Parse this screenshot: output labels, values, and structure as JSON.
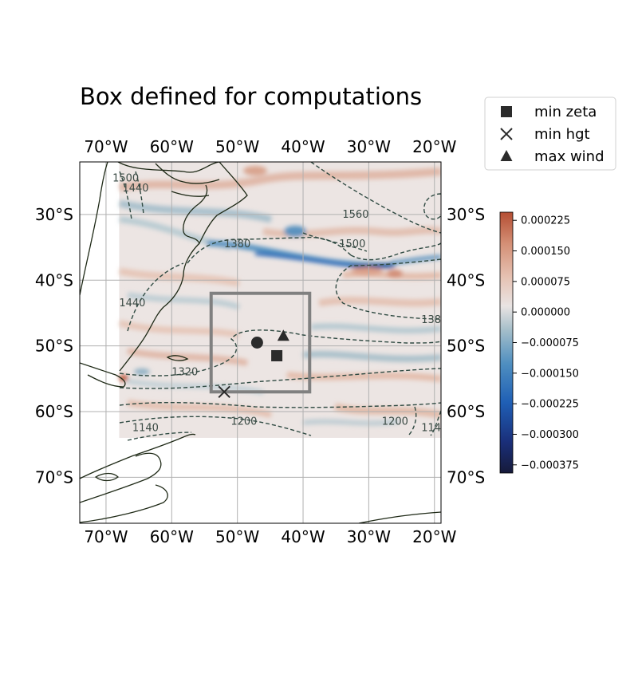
{
  "chart_data": {
    "type": "heatmap",
    "title": "Box defined for computations",
    "xlabel": "",
    "ylabel": "",
    "x_ticks": [
      "70°W",
      "60°W",
      "50°W",
      "40°W",
      "30°W",
      "20°W"
    ],
    "x_tick_values": [
      -70,
      -60,
      -50,
      -40,
      -30,
      -20
    ],
    "y_ticks": [
      "30°S",
      "40°S",
      "50°S",
      "60°S",
      "70°S"
    ],
    "y_tick_values": [
      -30,
      -40,
      -50,
      -60,
      -70
    ],
    "xlim": [
      -74,
      -19
    ],
    "ylim": [
      -77,
      -22
    ],
    "grid": true,
    "field_extent": {
      "lon": [
        -68,
        -19
      ],
      "lat": [
        -64,
        -22
      ]
    },
    "colorbar": {
      "ticks": [
        "0.000225",
        "0.000150",
        "0.000075",
        "0.000000",
        "−0.000075",
        "−0.000150",
        "−0.000225",
        "−0.000300",
        "−0.000375"
      ],
      "tick_values": [
        0.000225,
        0.00015,
        7.5e-05,
        0,
        -7.5e-05,
        -0.00015,
        -0.000225,
        -0.0003,
        -0.000375
      ],
      "range": [
        -0.000395,
        0.000245
      ],
      "colors": [
        "#161a3a",
        "#1a2f7a",
        "#1f5fb5",
        "#4f8fc0",
        "#a6bfca",
        "#e9e4e3",
        "#e6c2b3",
        "#d48f75",
        "#b54e33"
      ]
    },
    "box": {
      "lon": [
        -54,
        -39
      ],
      "lat": [
        -57,
        -42
      ]
    },
    "markers": [
      {
        "label": "min zeta",
        "symbol": "square",
        "lon": -44,
        "lat": -51.5
      },
      {
        "label": "min hgt",
        "symbol": "x",
        "lon": -52,
        "lat": -57
      },
      {
        "label": "max wind",
        "symbol": "triangle",
        "lon": -43,
        "lat": -48.5
      },
      {
        "label": "",
        "symbol": "circle",
        "lon": -47,
        "lat": -49.5
      }
    ],
    "contour_labels": [
      {
        "text": "1500",
        "lon": -67,
        "lat": -25
      },
      {
        "text": "1440",
        "lon": -65.5,
        "lat": -26.5
      },
      {
        "text": "1560",
        "lon": -32,
        "lat": -30.5
      },
      {
        "text": "1500",
        "lon": -32.5,
        "lat": -35
      },
      {
        "text": "1380",
        "lon": -50,
        "lat": -35
      },
      {
        "text": "1440",
        "lon": -66,
        "lat": -44
      },
      {
        "text": "1320",
        "lon": -58,
        "lat": -54.5
      },
      {
        "text": "1200",
        "lon": -49,
        "lat": -62
      },
      {
        "text": "1140",
        "lon": -64,
        "lat": -63
      },
      {
        "text": "1200",
        "lon": -26,
        "lat": -62
      },
      {
        "text": "138",
        "lon": -20.5,
        "lat": -46.5
      },
      {
        "text": "114",
        "lon": -20.5,
        "lat": -63
      }
    ]
  },
  "legend": {
    "items": [
      {
        "label": "min zeta",
        "symbol": "square"
      },
      {
        "label": "min hgt",
        "symbol": "x"
      },
      {
        "label": "max wind",
        "symbol": "triangle"
      }
    ],
    "placement": "top-right"
  },
  "colors": {
    "marker": "#2b2b2b",
    "box": "#808080",
    "coast": "#1f2a17",
    "contour": "#2f4a42",
    "grid": "#b0b0b0"
  }
}
